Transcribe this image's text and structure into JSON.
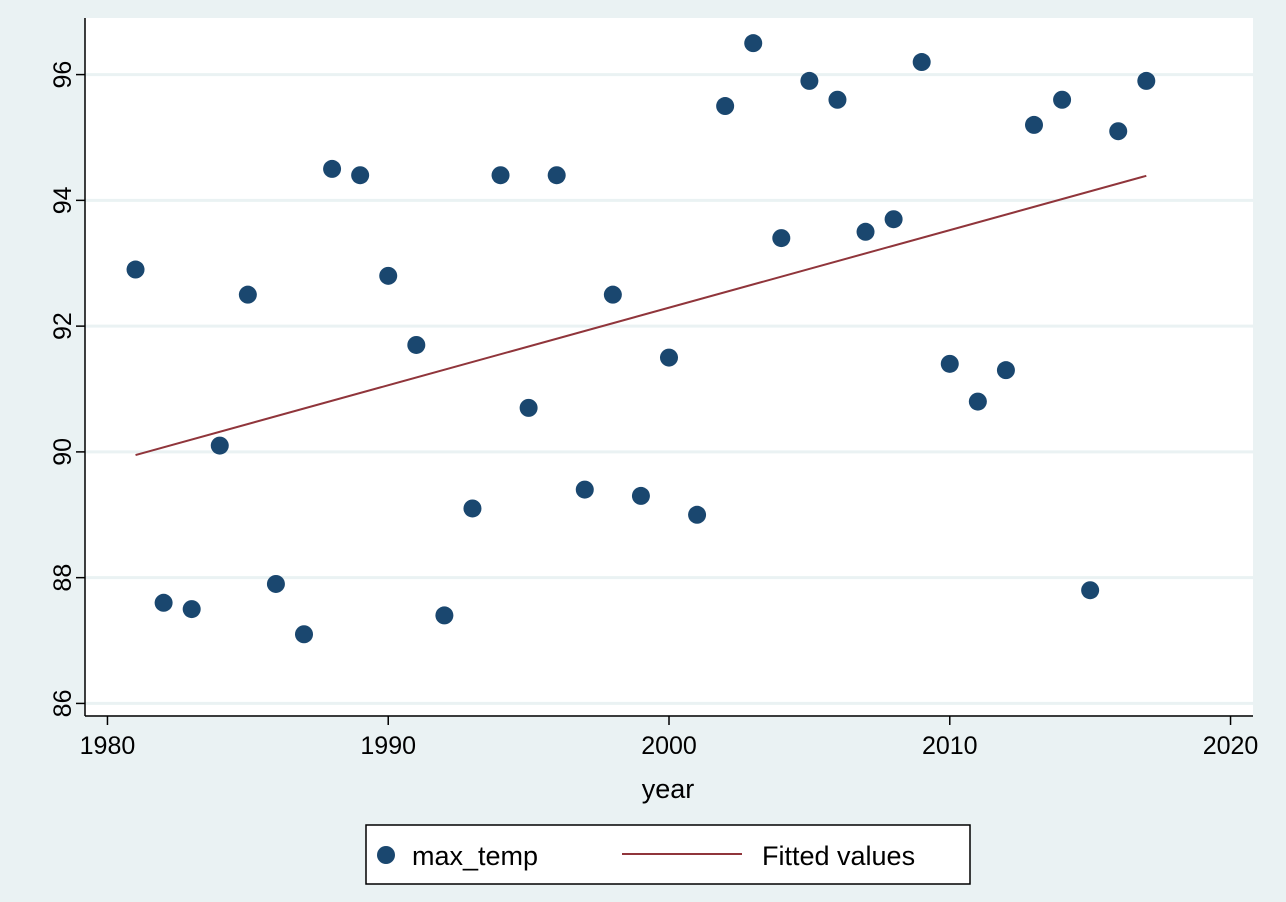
{
  "colors": {
    "background": "#eaf2f3",
    "plot_background": "#ffffff",
    "grid": "#eaf2f3",
    "point": "#1a476f",
    "fit_line": "#90353b",
    "axis": "#000000"
  },
  "chart_data": {
    "type": "scatter",
    "title": "",
    "xlabel": "year",
    "ylabel": "",
    "xlim": [
      1979.2,
      2020.8
    ],
    "ylim": [
      85.8,
      96.9
    ],
    "xticks": [
      1980,
      1990,
      2000,
      2010,
      2020
    ],
    "yticks": [
      86,
      88,
      90,
      92,
      94,
      96
    ],
    "grid": true,
    "legend_position": "bottom",
    "series": [
      {
        "name": "max_temp",
        "kind": "scatter",
        "x": [
          1981,
          1982,
          1983,
          1984,
          1985,
          1986,
          1987,
          1988,
          1989,
          1990,
          1991,
          1992,
          1993,
          1994,
          1995,
          1996,
          1997,
          1998,
          1999,
          2000,
          2001,
          2002,
          2003,
          2004,
          2005,
          2006,
          2007,
          2008,
          2009,
          2010,
          2011,
          2012,
          2013,
          2014,
          2015,
          2016,
          2017
        ],
        "y": [
          92.9,
          87.6,
          87.5,
          90.1,
          92.5,
          87.9,
          87.1,
          94.5,
          94.4,
          92.8,
          91.7,
          87.4,
          89.1,
          94.4,
          90.7,
          94.4,
          89.4,
          92.5,
          89.3,
          91.5,
          89.0,
          95.5,
          96.5,
          93.4,
          95.9,
          95.6,
          93.5,
          93.7,
          96.2,
          91.4,
          90.8,
          91.3,
          95.2,
          95.6,
          87.8,
          95.1,
          95.9
        ]
      },
      {
        "name": "Fitted values",
        "kind": "line",
        "x": [
          1981,
          2017
        ],
        "y": [
          89.95,
          94.39
        ]
      }
    ]
  }
}
